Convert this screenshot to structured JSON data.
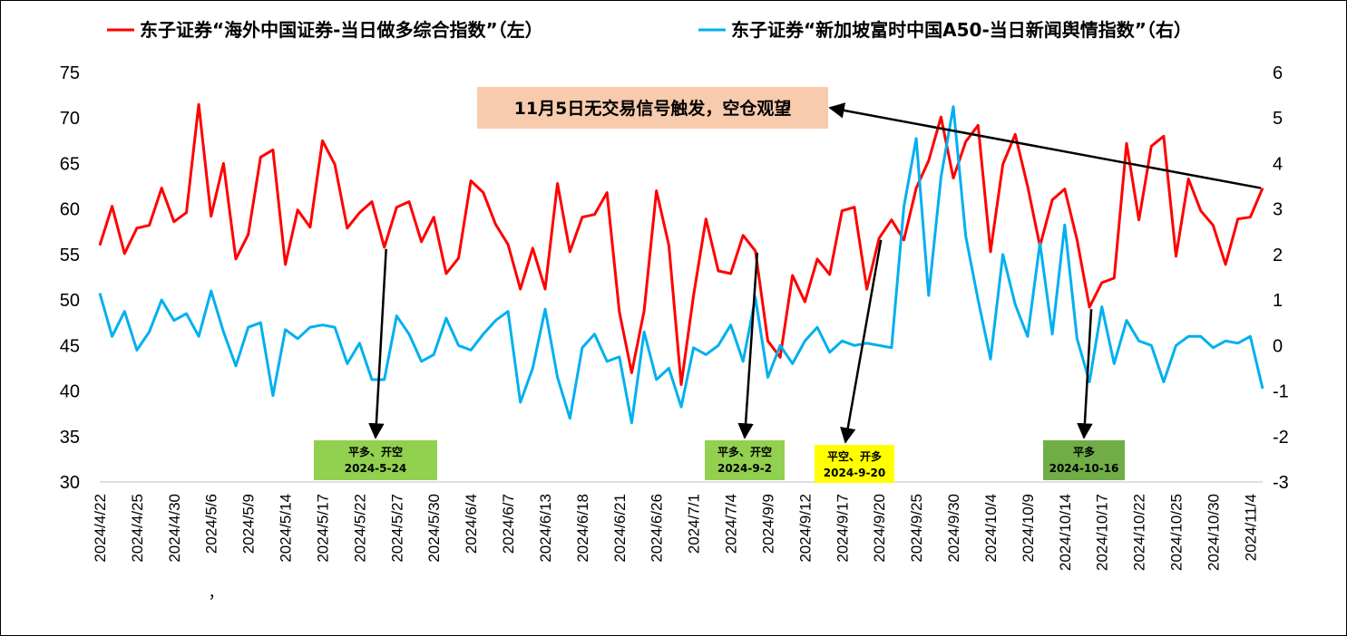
{
  "chart_data": {
    "type": "line",
    "title": "",
    "colors": {
      "left": "#ff0000",
      "right": "#00b0f0",
      "arrow": "#000000"
    },
    "legend": {
      "placement": "top",
      "items": [
        {
          "label": "东子证券“海外中国证券-当日做多综合指数”（左）",
          "color": "#ff0000"
        },
        {
          "label": "东子证券“新加坡富时中国A50-当日新闻舆情指数”（右）",
          "color": "#00b0f0"
        }
      ]
    },
    "y_left": {
      "min": 30,
      "max": 75,
      "ticks": [
        "30",
        "35",
        "40",
        "45",
        "50",
        "55",
        "60",
        "65",
        "70",
        "75"
      ]
    },
    "y_right": {
      "min": -3,
      "max": 6,
      "ticks": [
        "-3",
        "-2",
        "-1",
        "0",
        "1",
        "2",
        "3",
        "4",
        "5",
        "6"
      ]
    },
    "x_tick_labels": [
      "2024/4/22",
      "2024/4/25",
      "2024/4/30",
      "2024/5/6",
      "2024/5/9",
      "2024/5/14",
      "2024/5/17",
      "2024/5/22",
      "2024/5/27",
      "2024/5/30",
      "2024/6/4",
      "2024/6/7",
      "2024/6/13",
      "2024/6/18",
      "2024/6/21",
      "2024/6/26",
      "2024/7/1",
      "2024/7/4",
      "2024/9/9",
      "2024/9/12",
      "2024/9/17",
      "2024/9/20",
      "2024/9/25",
      "2024/9/30",
      "2024/10/4",
      "2024/10/9",
      "2024/10/14",
      "2024/10/17",
      "2024/10/22",
      "2024/10/25",
      "2024/10/30",
      "2024/11/4"
    ],
    "stray_mark": "，",
    "series": [
      {
        "name": "东子证券“海外中国证券-当日做多综合指数”（左）",
        "axis": "left",
        "values": [
          56,
          60.3,
          55.1,
          57.9,
          58.2,
          62.3,
          58.6,
          59.6,
          71.5,
          59.2,
          65,
          54.5,
          57.2,
          65.7,
          66.5,
          53.9,
          59.9,
          58,
          67.5,
          64.9,
          57.9,
          59.6,
          60.8,
          55.8,
          60.2,
          60.8,
          56.4,
          59.1,
          52.9,
          54.6,
          63.1,
          61.8,
          58.3,
          56.1,
          51.2,
          55.7,
          51.2,
          62.8,
          55.3,
          59.1,
          59.4,
          61.8,
          48.7,
          42,
          48.8,
          62,
          56,
          40.7,
          50.5,
          58.9,
          53.2,
          52.9,
          57.1,
          55.4,
          45.5,
          43.7,
          52.7,
          49.8,
          54.5,
          52.8,
          59.8,
          60.2,
          51.2,
          56.8,
          58.8,
          56.6,
          62.3,
          65.3,
          70.1,
          63.4,
          67.4,
          69.2,
          55.3,
          64.9,
          68.2,
          62.5,
          55.9,
          61,
          62.2,
          56.6,
          49.2,
          51.9,
          52.4,
          67.2,
          58.8,
          66.9,
          68,
          54.8,
          63.3,
          59.8,
          58.2,
          53.9,
          58.9,
          59.1,
          62.3
        ]
      },
      {
        "name": "东子证券“新加坡富时中国A50-当日新闻舆情指数”（右）",
        "axis": "right",
        "values": [
          1.15,
          0.2,
          0.75,
          -0.1,
          0.3,
          1,
          0.55,
          0.7,
          0.2,
          1.2,
          0.3,
          -0.45,
          0.4,
          0.5,
          -1.1,
          0.35,
          0.15,
          0.4,
          0.45,
          0.4,
          -0.4,
          0.05,
          -0.75,
          -0.75,
          0.65,
          0.25,
          -0.35,
          -0.2,
          0.6,
          0,
          -0.1,
          0.25,
          0.55,
          0.75,
          -1.25,
          -0.5,
          0.8,
          -0.7,
          -1.6,
          -0.05,
          0.25,
          -0.35,
          -0.25,
          -1.7,
          0.3,
          -0.75,
          -0.5,
          -1.35,
          -0.05,
          -0.2,
          0,
          0.45,
          -0.35,
          1.05,
          -0.7,
          0,
          -0.4,
          0.1,
          0.4,
          -0.15,
          0.1,
          0,
          0.05,
          0,
          -0.05,
          3.05,
          4.55,
          1.1,
          3.7,
          5.25,
          2.4,
          1,
          -0.3,
          2,
          0.9,
          0.2,
          2.25,
          0.25,
          2.65,
          0.15,
          -0.8,
          0.85,
          -0.4,
          0.55,
          0.1,
          0,
          -0.8,
          0,
          0.2,
          0.2,
          -0.05,
          0.1,
          0.05,
          0.2,
          -0.95
        ]
      }
    ],
    "annotations": [
      {
        "lines": [
          "平多、开空",
          "2024-5-24"
        ],
        "bg": "#92d050",
        "point_series": 0,
        "point_index": 23
      },
      {
        "lines": [
          "平多、开空",
          "2024-9-2"
        ],
        "bg": "#92d050",
        "point_series": 0,
        "point_index": 53
      },
      {
        "lines": [
          "平空、开多",
          "2024-9-20"
        ],
        "bg": "#ffff00",
        "point_series": 0,
        "point_index": 63
      },
      {
        "lines": [
          "平多",
          "2024-10-16"
        ],
        "bg": "#70ad47",
        "point_series": 0,
        "point_index": 80
      }
    ],
    "top_note": {
      "text": "11月5日无交易信号触发，空仓观望",
      "bg": "#f8cbad",
      "point_series": 0,
      "point_index": 94
    }
  }
}
